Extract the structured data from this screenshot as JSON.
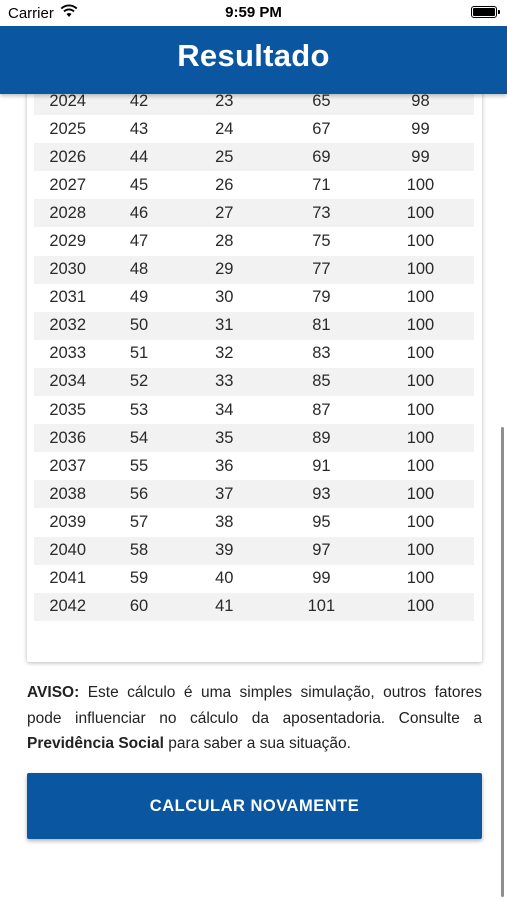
{
  "status_bar": {
    "carrier": "Carrier",
    "time": "9:59 PM"
  },
  "header": {
    "title": "Resultado"
  },
  "table": {
    "rows": [
      [
        "2024",
        "42",
        "23",
        "65",
        "98"
      ],
      [
        "2025",
        "43",
        "24",
        "67",
        "99"
      ],
      [
        "2026",
        "44",
        "25",
        "69",
        "99"
      ],
      [
        "2027",
        "45",
        "26",
        "71",
        "100"
      ],
      [
        "2028",
        "46",
        "27",
        "73",
        "100"
      ],
      [
        "2029",
        "47",
        "28",
        "75",
        "100"
      ],
      [
        "2030",
        "48",
        "29",
        "77",
        "100"
      ],
      [
        "2031",
        "49",
        "30",
        "79",
        "100"
      ],
      [
        "2032",
        "50",
        "31",
        "81",
        "100"
      ],
      [
        "2033",
        "51",
        "32",
        "83",
        "100"
      ],
      [
        "2034",
        "52",
        "33",
        "85",
        "100"
      ],
      [
        "2035",
        "53",
        "34",
        "87",
        "100"
      ],
      [
        "2036",
        "54",
        "35",
        "89",
        "100"
      ],
      [
        "2037",
        "55",
        "36",
        "91",
        "100"
      ],
      [
        "2038",
        "56",
        "37",
        "93",
        "100"
      ],
      [
        "2039",
        "57",
        "38",
        "95",
        "100"
      ],
      [
        "2040",
        "58",
        "39",
        "97",
        "100"
      ],
      [
        "2041",
        "59",
        "40",
        "99",
        "100"
      ],
      [
        "2042",
        "60",
        "41",
        "101",
        "100"
      ]
    ]
  },
  "notice": {
    "label": "AVISO:",
    "text_1": " Este cálculo é uma simples simulação, outros fatores pode influenciar no cálculo da aposentadoria. Consulte a ",
    "highlight": "Previdência Social",
    "text_2": " para saber a sua situação."
  },
  "actions": {
    "recalculate_label": "CALCULAR NOVAMENTE"
  },
  "colors": {
    "primary": "#0a56a0",
    "row_stripe": "#f2f2f2"
  }
}
